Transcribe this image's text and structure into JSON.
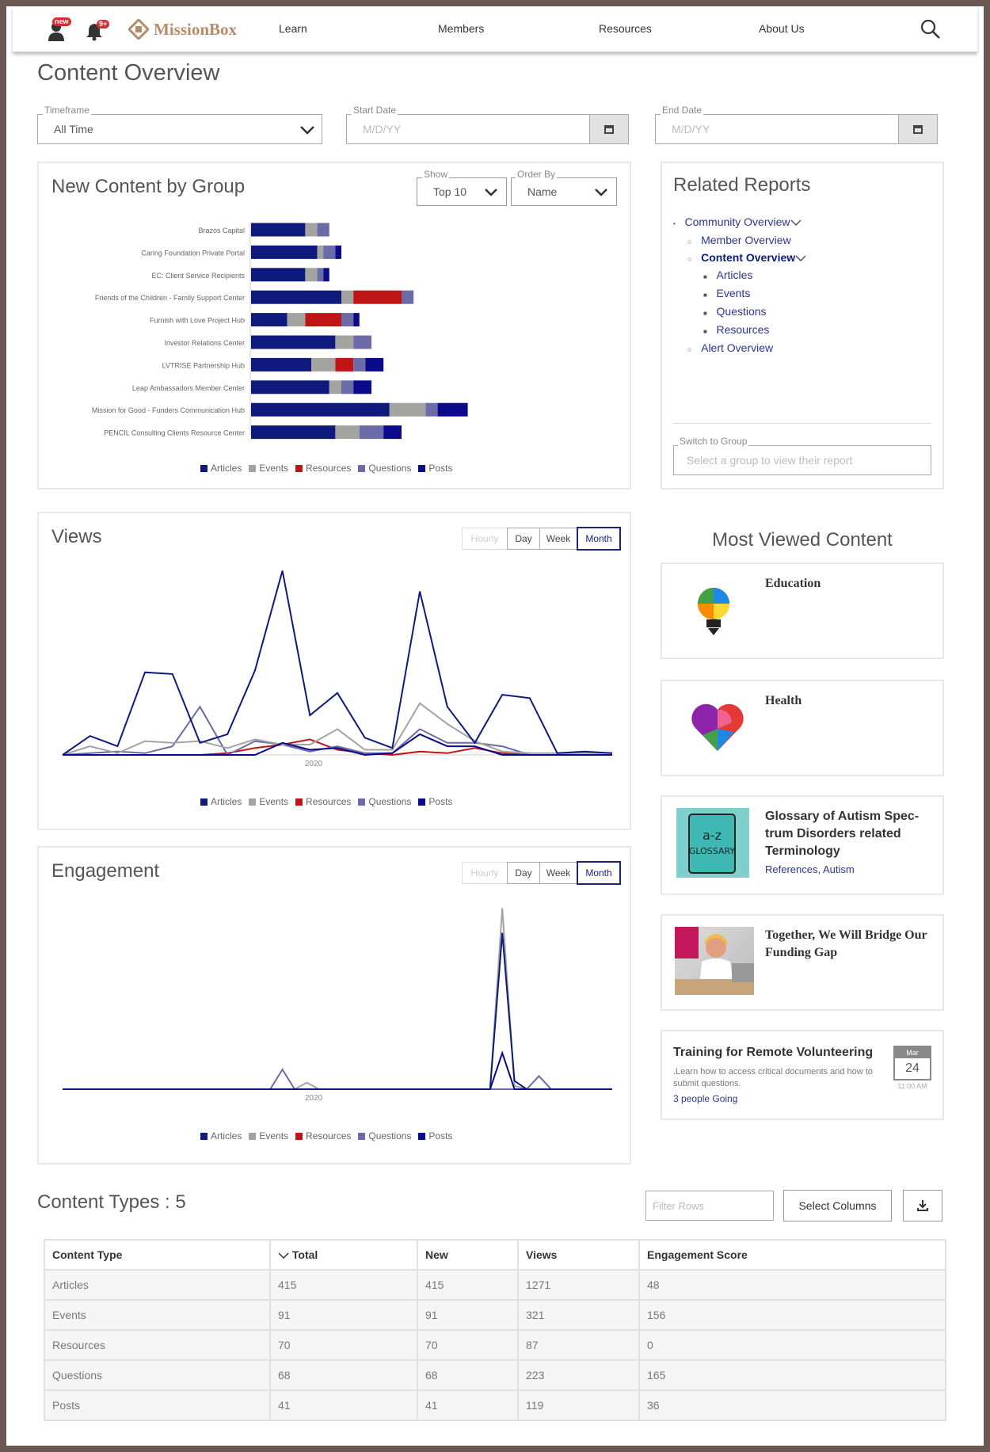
{
  "nav": {
    "new_badge": "new",
    "notif_badge": "9+",
    "logo": "MissionBox",
    "links": [
      "Learn",
      "Members",
      "Resources",
      "About Us"
    ]
  },
  "page_title": "Content Overview",
  "filters": {
    "timeframe_label": "Timeframe",
    "timeframe_value": "All Time",
    "start_label": "Start Date",
    "start_placeholder": "M/D/YY",
    "end_label": "End Date",
    "end_placeholder": "M/D/YY"
  },
  "group_panel": {
    "title": "New Content by Group",
    "show_label": "Show",
    "show_value": "Top 10",
    "order_label": "Order By",
    "order_value": "Name"
  },
  "legend": [
    "Articles",
    "Events",
    "Resources",
    "Questions",
    "Posts"
  ],
  "colors": {
    "Articles": "#0e1a7c",
    "Events": "#a3a3a0",
    "Resources": "#c01515",
    "Questions": "#6b6ba8",
    "Posts": "#0a0a8a"
  },
  "chart_data": [
    {
      "type": "bar",
      "orientation": "horizontal",
      "stacked": true,
      "title": "New Content by Group",
      "categories": [
        "Brazos Capital",
        "Caring Foundation Private Portal",
        "EC: Client Service Recipients",
        "Friends of the Children - Family Support Center",
        "Furnish with Love Project Hub",
        "Investor Relations Center",
        "LVTRISE Partnership Hub",
        "Leap Ambassadors Member Center",
        "Mission for Good - Funders Communication Hub",
        "PENCIL Consulting Clients Resource Center"
      ],
      "series": [
        {
          "name": "Articles",
          "values": [
            18,
            22,
            18,
            30,
            12,
            28,
            20,
            26,
            46,
            28
          ]
        },
        {
          "name": "Events",
          "values": [
            4,
            2,
            4,
            4,
            6,
            6,
            8,
            4,
            12,
            8
          ]
        },
        {
          "name": "Resources",
          "values": [
            0,
            0,
            0,
            16,
            12,
            0,
            6,
            0,
            0,
            0
          ]
        },
        {
          "name": "Questions",
          "values": [
            4,
            4,
            2,
            4,
            4,
            6,
            4,
            4,
            4,
            8
          ]
        },
        {
          "name": "Posts",
          "values": [
            0,
            2,
            2,
            0,
            2,
            0,
            6,
            6,
            10,
            6
          ]
        }
      ],
      "legend": "bottom"
    },
    {
      "type": "line",
      "title": "Views",
      "xlabel": "2020",
      "series": [
        {
          "name": "Articles",
          "values": [
            0,
            11,
            5,
            48,
            47,
            7,
            12,
            49,
            107,
            23,
            36,
            10,
            4,
            95,
            28,
            7,
            35,
            33,
            1,
            2,
            1
          ]
        },
        {
          "name": "Events",
          "values": [
            0,
            5,
            1,
            8,
            7,
            8,
            4,
            9,
            6,
            6,
            15,
            3,
            3,
            30,
            18,
            8,
            2,
            1,
            1,
            1,
            1
          ]
        },
        {
          "name": "Resources",
          "values": [
            0,
            0,
            0,
            0,
            0,
            0,
            1,
            4,
            6,
            9,
            3,
            1,
            0,
            2,
            1,
            4,
            1,
            0,
            0,
            0,
            0
          ]
        },
        {
          "name": "Questions",
          "values": [
            0,
            1,
            2,
            1,
            5,
            28,
            0,
            8,
            6,
            2,
            5,
            1,
            1,
            15,
            7,
            7,
            5,
            0,
            0,
            0,
            0
          ]
        },
        {
          "name": "Posts",
          "values": [
            0,
            0,
            0,
            0,
            0,
            0,
            0,
            0,
            7,
            3,
            4,
            0,
            1,
            12,
            5,
            5,
            0,
            0,
            0,
            0,
            0
          ]
        }
      ],
      "ylim": [
        0,
        110
      ],
      "legend": "bottom"
    },
    {
      "type": "line",
      "title": "Engagement",
      "xlabel": "2020",
      "series": [
        {
          "name": "Articles",
          "values": [
            0,
            0,
            0,
            0,
            0,
            0,
            0,
            0,
            0,
            0,
            0,
            0,
            0,
            0,
            0,
            0,
            0,
            0,
            0,
            0,
            0,
            0,
            0,
            0,
            0,
            0,
            0,
            0,
            0,
            0,
            0,
            0,
            0,
            0,
            0,
            0,
            95,
            5,
            0,
            0,
            0,
            0,
            0,
            0,
            0,
            0
          ]
        },
        {
          "name": "Events",
          "values": [
            0,
            0,
            0,
            0,
            0,
            0,
            0,
            0,
            0,
            0,
            0,
            0,
            0,
            0,
            0,
            0,
            0,
            0,
            0,
            0,
            4,
            0,
            0,
            0,
            0,
            0,
            0,
            0,
            0,
            0,
            0,
            0,
            0,
            0,
            0,
            0,
            110,
            2,
            0,
            0,
            0,
            0,
            0,
            0,
            0,
            0
          ]
        },
        {
          "name": "Resources",
          "values": [
            0,
            0,
            0,
            0,
            0,
            0,
            0,
            0,
            0,
            0,
            0,
            0,
            0,
            0,
            0,
            0,
            0,
            0,
            0,
            0,
            0,
            0,
            0,
            0,
            0,
            0,
            0,
            0,
            0,
            0,
            0,
            0,
            0,
            0,
            0,
            0,
            0,
            0,
            0,
            0,
            0,
            0,
            0,
            0,
            0,
            0
          ]
        },
        {
          "name": "Questions",
          "values": [
            0,
            0,
            0,
            0,
            0,
            0,
            0,
            0,
            0,
            0,
            0,
            0,
            0,
            0,
            0,
            0,
            0,
            0,
            12,
            0,
            0,
            0,
            0,
            0,
            0,
            0,
            0,
            0,
            0,
            0,
            0,
            0,
            0,
            0,
            0,
            0,
            0,
            0,
            0,
            8,
            0,
            0,
            0,
            0,
            0,
            0
          ]
        },
        {
          "name": "Posts",
          "values": [
            0,
            0,
            0,
            0,
            0,
            0,
            0,
            0,
            0,
            0,
            0,
            0,
            0,
            0,
            0,
            0,
            0,
            0,
            0,
            0,
            0,
            0,
            0,
            0,
            0,
            0,
            0,
            0,
            0,
            0,
            0,
            0,
            0,
            0,
            0,
            0,
            22,
            0,
            0,
            0,
            0,
            0,
            0,
            0,
            0,
            0
          ]
        }
      ],
      "ylim": [
        0,
        115
      ],
      "legend": "bottom"
    }
  ],
  "views_panel": {
    "title": "Views",
    "x_label": "2020"
  },
  "engagement_panel": {
    "title": "Engagement",
    "x_label": "2020"
  },
  "time_buttons": [
    "Hourly",
    "Day",
    "Week",
    "Month"
  ],
  "related": {
    "title": "Related Reports",
    "community": "Community Overview",
    "member": "Member Overview",
    "content": "Content Overview",
    "sub": [
      "Articles",
      "Events",
      "Questions",
      "Resources"
    ],
    "alert": "Alert Overview",
    "switch_label": "Switch to Group",
    "switch_placeholder": "Select a group to view their report"
  },
  "most_viewed": {
    "title": "Most Viewed Content",
    "cards": [
      {
        "title": "Education"
      },
      {
        "title": "Health"
      },
      {
        "title": "Glossary of Autism Spec-trum Disorders related Terminology",
        "tags": "References, Autism"
      },
      {
        "title": "Together, We Will Bridge Our Funding Gap"
      }
    ],
    "event": {
      "title": "Training for Remote Volunteering",
      "desc": ".Learn how to access critical documents and how to submit questions.",
      "going": "3 people Going",
      "month": "Mar",
      "day": "24",
      "time": "11:00 AM"
    }
  },
  "content_types": {
    "title": "Content Types : 5",
    "filter_placeholder": "Filter Rows",
    "select_columns": "Select Columns",
    "headers": [
      "Content Type",
      "Total",
      "New",
      "Views",
      "Engagement Score"
    ],
    "rows": [
      [
        "Articles",
        "415",
        "415",
        "1271",
        "48"
      ],
      [
        "Events",
        "91",
        "91",
        "321",
        "156"
      ],
      [
        "Resources",
        "70",
        "70",
        "87",
        "0"
      ],
      [
        "Questions",
        "68",
        "68",
        "223",
        "165"
      ],
      [
        "Posts",
        "41",
        "41",
        "119",
        "36"
      ]
    ]
  }
}
